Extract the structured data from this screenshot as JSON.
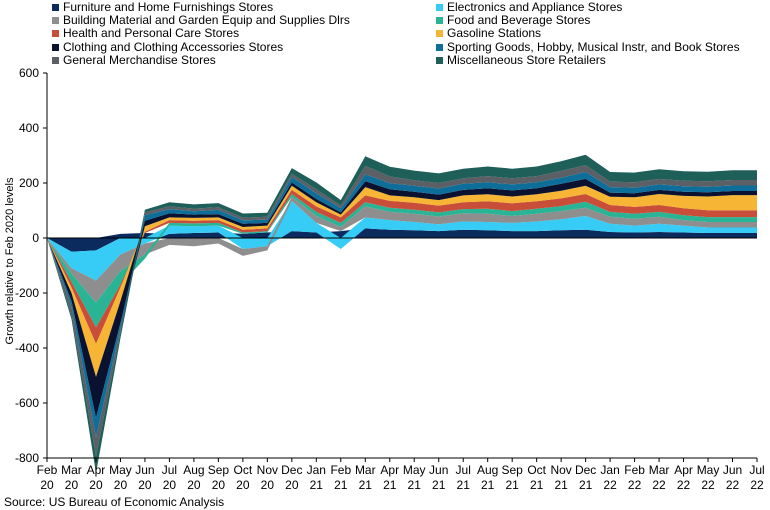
{
  "chart_data": {
    "type": "area",
    "ylabel": "Growth relative to Feb 2020 levels",
    "ylim": [
      -800,
      600
    ],
    "yticks": [
      600,
      400,
      200,
      0,
      -200,
      -400,
      -600,
      -800
    ],
    "grid": false,
    "legend_position": "top",
    "source": "Source: US Bureau of Economic Analysis",
    "x_tick_labels": [
      {
        "month": "Feb",
        "year": "20"
      },
      {
        "month": "Mar",
        "year": "20"
      },
      {
        "month": "Apr",
        "year": "20"
      },
      {
        "month": "May",
        "year": "20"
      },
      {
        "month": "Jun",
        "year": "20"
      },
      {
        "month": "Jul",
        "year": "20"
      },
      {
        "month": "Aug",
        "year": "20"
      },
      {
        "month": "Sep",
        "year": "20"
      },
      {
        "month": "Oct",
        "year": "20"
      },
      {
        "month": "Nov",
        "year": "20"
      },
      {
        "month": "Dec",
        "year": "20"
      },
      {
        "month": "Jan",
        "year": "21"
      },
      {
        "month": "Feb",
        "year": "21"
      },
      {
        "month": "Mar",
        "year": "21"
      },
      {
        "month": "Apr",
        "year": "21"
      },
      {
        "month": "May",
        "year": "21"
      },
      {
        "month": "Jun",
        "year": "21"
      },
      {
        "month": "Jul",
        "year": "21"
      },
      {
        "month": "Aug",
        "year": "21"
      },
      {
        "month": "Sep",
        "year": "21"
      },
      {
        "month": "Oct",
        "year": "21"
      },
      {
        "month": "Nov",
        "year": "21"
      },
      {
        "month": "Dec",
        "year": "21"
      },
      {
        "month": "Jan",
        "year": "22"
      },
      {
        "month": "Feb",
        "year": "22"
      },
      {
        "month": "Mar",
        "year": "22"
      },
      {
        "month": "Apr",
        "year": "22"
      },
      {
        "month": "May",
        "year": "22"
      },
      {
        "month": "Jun",
        "year": "22"
      },
      {
        "month": "Jul",
        "year": "22"
      }
    ],
    "series": [
      {
        "name": "Furniture and Home Furnishings Stores",
        "color": "#0b2a5e",
        "values": [
          0,
          -50,
          -45,
          15,
          18,
          15,
          18,
          20,
          15,
          20,
          25,
          20,
          25,
          35,
          30,
          28,
          25,
          30,
          28,
          25,
          25,
          28,
          30,
          22,
          20,
          22,
          20,
          18,
          18,
          18
        ]
      },
      {
        "name": "Electronics and Appliance Stores",
        "color": "#37ccf5",
        "values": [
          0,
          -60,
          -110,
          -60,
          -20,
          30,
          25,
          25,
          -40,
          -30,
          110,
          35,
          -40,
          40,
          35,
          30,
          25,
          30,
          30,
          30,
          35,
          40,
          50,
          30,
          25,
          30,
          25,
          20,
          20,
          20
        ]
      },
      {
        "name": "Building Material and Garden Equip and Supplies Dlrs",
        "color": "#8e8e8e",
        "values": [
          0,
          -20,
          -80,
          -60,
          -40,
          -25,
          -30,
          -20,
          -25,
          -15,
          15,
          25,
          15,
          40,
          30,
          30,
          28,
          30,
          30,
          25,
          28,
          30,
          30,
          25,
          25,
          25,
          20,
          20,
          20,
          20
        ]
      },
      {
        "name": "Food and Beverage Stores",
        "color": "#29b495",
        "values": [
          0,
          -30,
          -90,
          -50,
          -15,
          10,
          10,
          10,
          5,
          5,
          10,
          15,
          15,
          15,
          15,
          15,
          15,
          15,
          18,
          18,
          18,
          18,
          22,
          18,
          18,
          18,
          18,
          18,
          18,
          18
        ]
      },
      {
        "name": "Health and Personal Care Stores",
        "color": "#c94e3a",
        "values": [
          0,
          -20,
          -60,
          -10,
          5,
          10,
          10,
          10,
          10,
          10,
          15,
          20,
          20,
          25,
          25,
          25,
          25,
          25,
          28,
          28,
          28,
          28,
          28,
          25,
          25,
          25,
          25,
          25,
          25,
          25
        ]
      },
      {
        "name": "Gasoline Stations",
        "color": "#f6b534",
        "values": [
          0,
          -20,
          -120,
          -50,
          20,
          10,
          10,
          10,
          10,
          10,
          15,
          15,
          10,
          30,
          20,
          20,
          20,
          25,
          25,
          25,
          25,
          28,
          30,
          30,
          35,
          40,
          45,
          50,
          55,
          55
        ]
      },
      {
        "name": "Clothing and Clothing Accessories Stores",
        "color": "#0a1230",
        "values": [
          0,
          -30,
          -150,
          -80,
          20,
          15,
          12,
          12,
          12,
          10,
          12,
          12,
          8,
          22,
          22,
          20,
          20,
          20,
          22,
          22,
          22,
          25,
          25,
          15,
          15,
          15,
          15,
          15,
          15,
          15
        ]
      },
      {
        "name": "Sporting Goods, Hobby, Musical Instr, and Book Stores",
        "color": "#0e6e9a",
        "values": [
          0,
          -20,
          -70,
          -20,
          20,
          15,
          12,
          15,
          12,
          12,
          20,
          20,
          15,
          25,
          22,
          22,
          22,
          22,
          22,
          22,
          22,
          22,
          25,
          20,
          20,
          20,
          20,
          20,
          20,
          20
        ]
      },
      {
        "name": "General Merchandise Stores",
        "color": "#5b5f66",
        "values": [
          0,
          -30,
          -70,
          -15,
          10,
          10,
          10,
          10,
          10,
          10,
          12,
          15,
          10,
          30,
          25,
          20,
          20,
          20,
          22,
          22,
          22,
          25,
          25,
          20,
          20,
          20,
          20,
          20,
          20,
          20
        ]
      },
      {
        "name": "Miscellaneous Store Retailers",
        "color": "#1e5f5a",
        "values": [
          0,
          -15,
          -60,
          -20,
          10,
          15,
          15,
          15,
          15,
          15,
          20,
          25,
          20,
          35,
          35,
          35,
          35,
          35,
          35,
          35,
          35,
          35,
          38,
          35,
          35,
          35,
          35,
          35,
          35,
          35
        ]
      }
    ]
  }
}
